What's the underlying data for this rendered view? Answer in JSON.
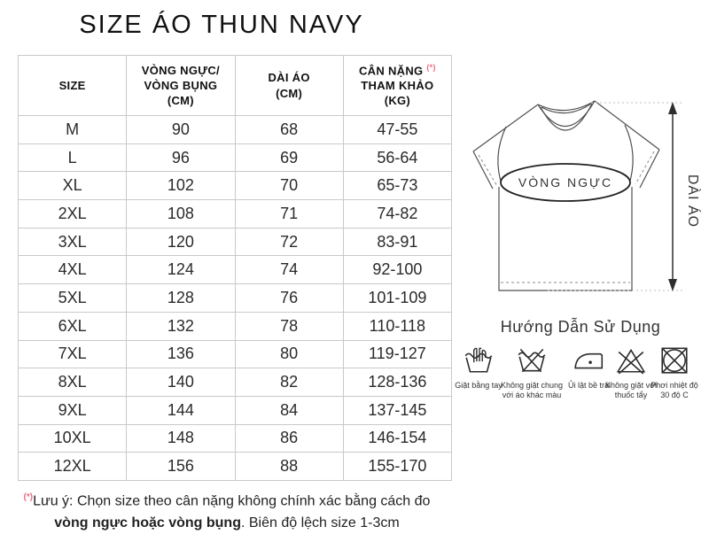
{
  "title": "SIZE ÁO THUN NAVY",
  "colors": {
    "accent_red": "#ee6b7c",
    "table_border": "#c9c9c9",
    "shirt_line": "#4f4f4f"
  },
  "table": {
    "headers": [
      "SIZE",
      "VÒNG NGỰC/\nVÒNG BỤNG\n(CM)",
      "DÀI ÁO\n(CM)"
    ],
    "weight_header": {
      "line1": "CÂN NẶNG",
      "marker": "(*)",
      "rest": "THAM KHẢO\n(KG)"
    },
    "rows": [
      [
        "M",
        "90",
        "68",
        "47-55"
      ],
      [
        "L",
        "96",
        "69",
        "56-64"
      ],
      [
        "XL",
        "102",
        "70",
        "65-73"
      ],
      [
        "2XL",
        "108",
        "71",
        "74-82"
      ],
      [
        "3XL",
        "120",
        "72",
        "83-91"
      ],
      [
        "4XL",
        "124",
        "74",
        "92-100"
      ],
      [
        "5XL",
        "128",
        "76",
        "101-109"
      ],
      [
        "6XL",
        "132",
        "78",
        "110-118"
      ],
      [
        "7XL",
        "136",
        "80",
        "119-127"
      ],
      [
        "8XL",
        "140",
        "82",
        "128-136"
      ],
      [
        "9XL",
        "144",
        "84",
        "137-145"
      ],
      [
        "10XL",
        "148",
        "86",
        "146-154"
      ],
      [
        "12XL",
        "156",
        "88",
        "155-170"
      ]
    ]
  },
  "diagram": {
    "chest_label": "VÒNG NGỰC",
    "length_label": "DÀI ÁO"
  },
  "care": {
    "heading": "Hướng Dẫn Sử Dụng",
    "items": [
      {
        "icon": "hand-wash-icon",
        "label": "Giặt bằng tay"
      },
      {
        "icon": "no-mixed-wash-icon",
        "label": "Không giặt chung\nvới áo khác màu"
      },
      {
        "icon": "iron-inside-out-icon",
        "label": "Ủi lật bề trái"
      },
      {
        "icon": "no-bleach-icon",
        "label": "Không giặt với\nthuốc tẩy"
      },
      {
        "icon": "dry-30c-icon",
        "label": "Phơi nhiệt độ\n30 độ C"
      }
    ]
  },
  "note": {
    "marker": "(*)",
    "line1": "Lưu ý: Chọn size theo cân nặng không chính xác bằng cách đo",
    "bold": "vòng ngực hoặc vòng bụng",
    "line2_rest": ". Biên độ lệch size 1-3cm"
  }
}
